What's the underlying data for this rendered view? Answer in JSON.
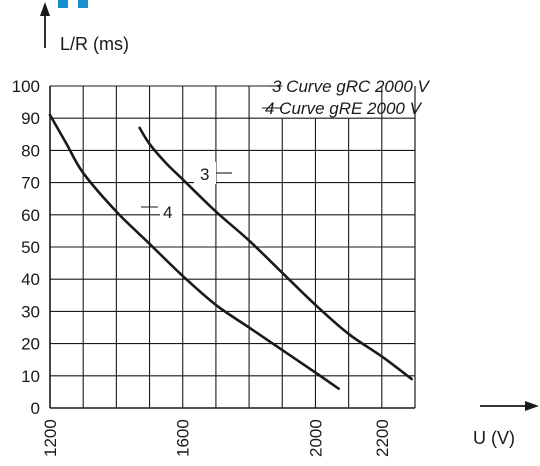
{
  "colors": {
    "accent": "#1a8fd0",
    "ink": "#1a1a1a"
  },
  "chart_data": {
    "type": "line",
    "xlabel": "U (V)",
    "ylabel": "L/R (ms)",
    "xlim": [
      1200,
      2300
    ],
    "ylim": [
      0,
      100
    ],
    "x_tick_labels": [
      "1200",
      "1600",
      "2000",
      "2200"
    ],
    "y_tick_labels": [
      "0",
      "10",
      "20",
      "30",
      "40",
      "50",
      "60",
      "70",
      "80",
      "90",
      "100"
    ],
    "grid": true,
    "legend_entries": [
      "3 Curve gRC 2000 V",
      "4 Curve gRE 2000 V"
    ],
    "legend_position": "top-right",
    "series": [
      {
        "name": "3",
        "x": [
          1470,
          1500,
          1550,
          1600,
          1700,
          1800,
          1900,
          2000,
          2100,
          2200,
          2290
        ],
        "y": [
          87,
          82,
          76,
          71,
          61,
          52,
          42,
          32,
          23,
          16,
          9
        ]
      },
      {
        "name": "4",
        "x": [
          1200,
          1250,
          1300,
          1400,
          1500,
          1600,
          1700,
          1800,
          1900,
          2000,
          2070
        ],
        "y": [
          91,
          82,
          73,
          61,
          51,
          41,
          32,
          25,
          18,
          11,
          6
        ]
      }
    ]
  }
}
